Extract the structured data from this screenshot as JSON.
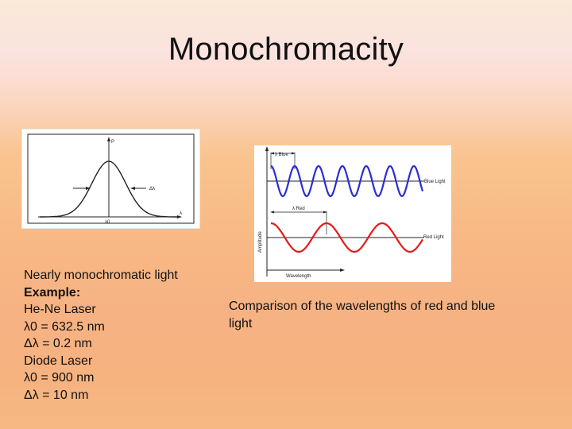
{
  "slide": {
    "title": "Monochromacity",
    "left_text": {
      "line1": "Nearly monochromatic light",
      "line2": "Example:",
      "line3": "He-Ne Laser",
      "line4": "λ0 = 632.5 nm",
      "line5": "Δλ = 0.2 nm",
      "line6": "Diode Laser",
      "line7": "λ0 = 900 nm",
      "line8": "Δλ = 10 nm"
    },
    "caption": "Comparison of the wavelengths of red and blue light"
  },
  "figure_left": {
    "axis_y": "P",
    "axis_x": "λ",
    "center_label": "λ0",
    "width_label": "Δλ"
  },
  "figure_right": {
    "blue_label": "λ Blue",
    "red_label": "λ Red",
    "blue_wave_label": "Blue Light",
    "red_wave_label": "Red Light",
    "y_axis_label": "Amplitude",
    "x_axis_label": "Wavelength",
    "blue_color": "#2b2bd8",
    "red_color": "#e21b1b"
  }
}
